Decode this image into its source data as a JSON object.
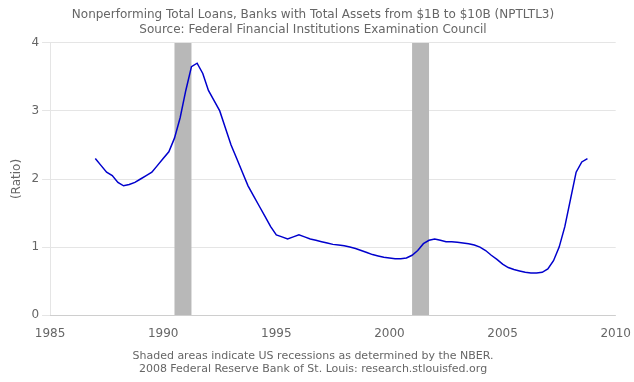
{
  "chart_data": {
    "type": "line",
    "title": "Nonperforming Total Loans, Banks with Total Assets from $1B to $10B (NPTLTL3)",
    "subtitle": "Source: Federal Financial Institutions Examination Council",
    "ylabel": "(Ratio)",
    "annotations": [
      "Shaded areas indicate US recessions as determined by the NBER.",
      "2008 Federal Reserve Bank of St. Louis: research.stlouisfed.org"
    ],
    "xlim": [
      1985,
      2010
    ],
    "ylim": [
      0,
      4
    ],
    "xticks": [
      1985,
      1990,
      1995,
      2000,
      2005,
      2010
    ],
    "yticks": [
      0,
      1,
      2,
      3,
      4
    ],
    "grid": true,
    "color": "#0000CD",
    "bands": {
      "ranges": [
        [
          1990.5,
          1991.25
        ],
        [
          2001.0,
          2001.75
        ]
      ],
      "color": "#b8b8b8"
    },
    "x": [
      1987.0,
      1987.25,
      1987.5,
      1987.75,
      1988.0,
      1988.25,
      1988.5,
      1988.75,
      1989.0,
      1989.25,
      1989.5,
      1989.75,
      1990.0,
      1990.25,
      1990.5,
      1990.75,
      1991.0,
      1991.25,
      1991.5,
      1991.75,
      1992.0,
      1992.25,
      1992.5,
      1992.75,
      1993.0,
      1993.25,
      1993.5,
      1993.75,
      1994.0,
      1994.25,
      1994.5,
      1994.75,
      1995.0,
      1995.25,
      1995.5,
      1995.75,
      1996.0,
      1996.25,
      1996.5,
      1996.75,
      1997.0,
      1997.25,
      1997.5,
      1997.75,
      1998.0,
      1998.25,
      1998.5,
      1998.75,
      1999.0,
      1999.25,
      1999.5,
      1999.75,
      2000.0,
      2000.25,
      2000.5,
      2000.75,
      2001.0,
      2001.25,
      2001.5,
      2001.75,
      2002.0,
      2002.25,
      2002.5,
      2002.75,
      2003.0,
      2003.25,
      2003.5,
      2003.75,
      2004.0,
      2004.25,
      2004.5,
      2004.75,
      2005.0,
      2005.25,
      2005.5,
      2005.75,
      2006.0,
      2006.25,
      2006.5,
      2006.75,
      2007.0,
      2007.25,
      2007.5,
      2007.75,
      2008.0,
      2008.25,
      2008.5,
      2008.75
    ],
    "values": [
      2.3,
      2.2,
      2.1,
      2.05,
      1.95,
      1.9,
      1.92,
      1.95,
      2.0,
      2.05,
      2.1,
      2.2,
      2.3,
      2.4,
      2.6,
      2.9,
      3.3,
      3.65,
      3.7,
      3.55,
      3.3,
      3.15,
      3.0,
      2.75,
      2.5,
      2.3,
      2.1,
      1.9,
      1.75,
      1.6,
      1.45,
      1.3,
      1.18,
      1.15,
      1.12,
      1.15,
      1.18,
      1.15,
      1.12,
      1.1,
      1.08,
      1.06,
      1.04,
      1.03,
      1.02,
      1.0,
      0.98,
      0.95,
      0.92,
      0.89,
      0.87,
      0.85,
      0.84,
      0.83,
      0.83,
      0.84,
      0.88,
      0.95,
      1.05,
      1.1,
      1.12,
      1.1,
      1.08,
      1.08,
      1.07,
      1.06,
      1.05,
      1.03,
      1.0,
      0.95,
      0.88,
      0.82,
      0.75,
      0.7,
      0.67,
      0.65,
      0.63,
      0.62,
      0.62,
      0.63,
      0.68,
      0.8,
      1.0,
      1.3,
      1.7,
      2.1,
      2.25,
      2.3
    ]
  }
}
